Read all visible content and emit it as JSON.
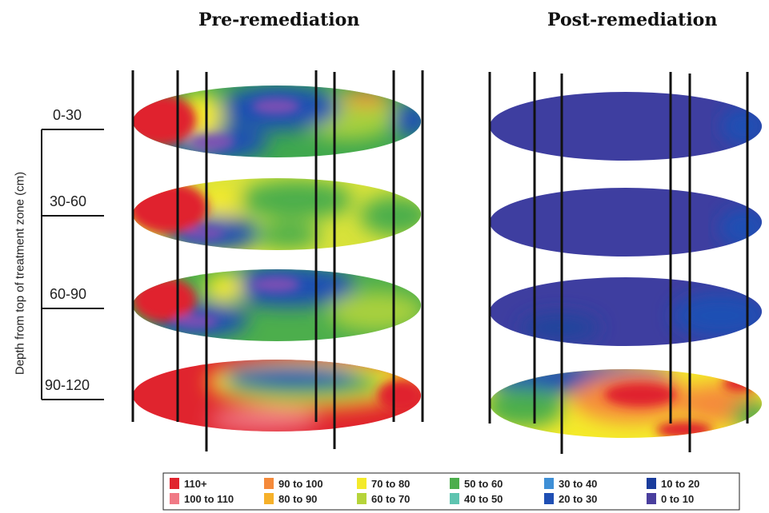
{
  "titles": {
    "pre": "Pre-remediation",
    "post": "Post-remediation"
  },
  "axis": {
    "title": "Depth from top of treatment zone (cm)",
    "depths": [
      "0-30",
      "30-60",
      "60-90",
      "90-120"
    ]
  },
  "legend": [
    {
      "label": "110+",
      "color": "#e0242e"
    },
    {
      "label": "100 to 110",
      "color": "#f07a86"
    },
    {
      "label": "90 to 100",
      "color": "#f58a3a"
    },
    {
      "label": "80 to 90",
      "color": "#f6b12a"
    },
    {
      "label": "70 to 80",
      "color": "#f4ea2a"
    },
    {
      "label": "60 to 70",
      "color": "#b6d43a"
    },
    {
      "label": "50 to 60",
      "color": "#4cae4c"
    },
    {
      "label": "40 to 50",
      "color": "#5ec4b0"
    },
    {
      "label": "30 to 40",
      "color": "#3e8fd6"
    },
    {
      "label": "20 to 30",
      "color": "#1f4fb4"
    },
    {
      "label": "10 to 20",
      "color": "#1a3c9c"
    },
    {
      "label": "0 to 10",
      "color": "#4a3f9e"
    }
  ]
}
